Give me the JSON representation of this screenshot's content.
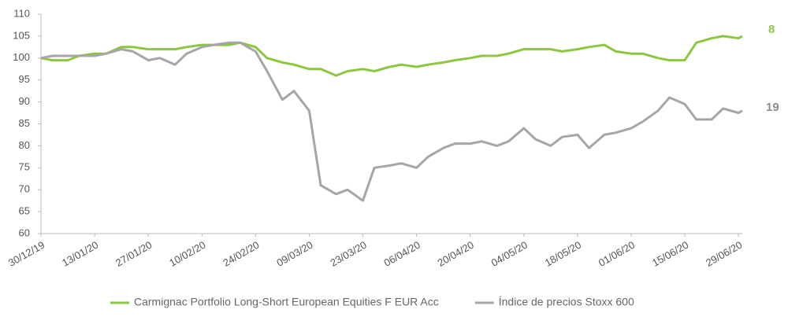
{
  "chart_data": {
    "type": "line",
    "annotations": [
      "8",
      "19"
    ],
    "x": [
      "30/12/19",
      "02/01/20",
      "06/01/20",
      "09/01/20",
      "13/01/20",
      "16/01/20",
      "20/01/20",
      "23/01/20",
      "27/01/20",
      "30/01/20",
      "03/02/20",
      "06/02/20",
      "10/02/20",
      "13/02/20",
      "17/02/20",
      "20/02/20",
      "24/02/20",
      "27/02/20",
      "02/03/20",
      "05/03/20",
      "09/03/20",
      "12/03/20",
      "16/03/20",
      "19/03/20",
      "23/03/20",
      "26/03/20",
      "30/03/20",
      "02/04/20",
      "06/04/20",
      "09/04/20",
      "13/04/20",
      "16/04/20",
      "20/04/20",
      "23/04/20",
      "27/04/20",
      "30/04/20",
      "04/05/20",
      "07/05/20",
      "11/05/20",
      "14/05/20",
      "18/05/20",
      "21/05/20",
      "25/05/20",
      "28/05/20",
      "01/06/20",
      "04/06/20",
      "08/06/20",
      "11/06/20",
      "15/06/20",
      "18/06/20",
      "22/06/20",
      "25/06/20",
      "29/06/20",
      "30/06/20"
    ],
    "series": [
      {
        "name": "Carmignac Portfolio Long-Short European Equities F EUR Acc",
        "color": "#8dc63f",
        "values": [
          100,
          99.5,
          99.5,
          100.5,
          101,
          101,
          102.5,
          102.5,
          102,
          102,
          102,
          102.5,
          103,
          103,
          103,
          103.5,
          102.5,
          100,
          99,
          98.5,
          97.5,
          97.5,
          96,
          97,
          97.5,
          97,
          98,
          98.5,
          98,
          98.5,
          99,
          99.5,
          100,
          100.5,
          100.5,
          101,
          102,
          102,
          102,
          101.5,
          102,
          102.5,
          103,
          101.5,
          101,
          101,
          100,
          99.5,
          99.5,
          103.5,
          104.5,
          105,
          104.5,
          105
        ]
      },
      {
        "name": "Índice de precios Stoxx 600",
        "color": "#a6a6a6",
        "values": [
          100,
          100.5,
          100.5,
          100.5,
          100.5,
          101,
          102,
          101.5,
          99.5,
          100,
          98.5,
          101,
          102.5,
          103,
          103.5,
          103.5,
          101.5,
          97,
          90.5,
          92.5,
          88,
          71,
          69,
          70,
          67.5,
          75,
          75.5,
          76,
          75,
          77.5,
          79.5,
          80.5,
          80.5,
          81,
          80,
          81,
          84,
          81.5,
          80,
          82,
          82.5,
          79.5,
          82.5,
          83,
          84,
          85.5,
          88,
          91,
          89.5,
          86,
          86,
          88.5,
          87.5,
          88
        ]
      }
    ],
    "xlim": [
      "30/12/19",
      "30/06/20"
    ],
    "xticks": [
      "30/12/19",
      "13/01/20",
      "27/01/20",
      "10/02/20",
      "24/02/20",
      "09/03/20",
      "23/03/20",
      "06/04/20",
      "20/04/20",
      "04/05/20",
      "18/05/20",
      "01/06/20",
      "15/06/20",
      "29/06/20"
    ],
    "ylim": [
      60,
      110
    ],
    "yticks": [
      60,
      65,
      70,
      75,
      80,
      85,
      90,
      95,
      100,
      105,
      110
    ],
    "grid": false
  }
}
